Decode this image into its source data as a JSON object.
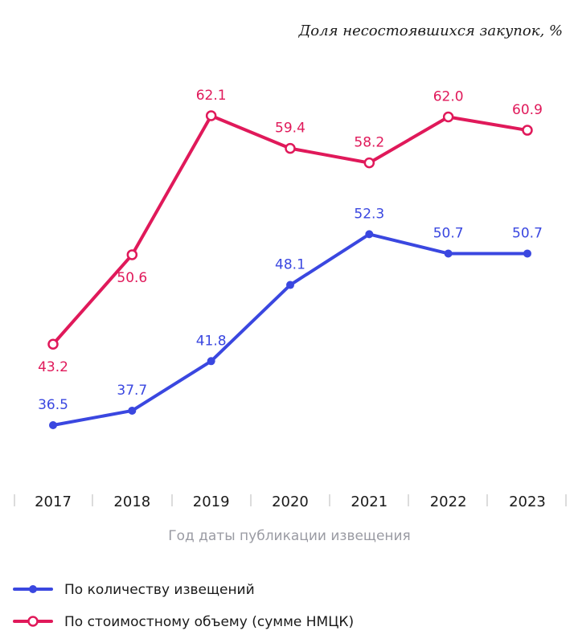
{
  "chart_data": {
    "type": "line",
    "title": "Доля несостоявшихся закупок, %",
    "xlabel": "Год даты публикации извещения",
    "ylabel": "",
    "categories": [
      "2017",
      "2018",
      "2019",
      "2020",
      "2021",
      "2022",
      "2023"
    ],
    "series": [
      {
        "name": "По количеству извещений",
        "color": "#3a47e0",
        "marker": "filled-circle",
        "values": [
          36.5,
          37.7,
          41.8,
          48.1,
          52.3,
          50.7,
          50.7
        ],
        "labels": [
          "36.5",
          "37.7",
          "41.8",
          "48.1",
          "52.3",
          "50.7",
          "50.7"
        ],
        "label_position": [
          "above",
          "above",
          "above",
          "above",
          "above",
          "above",
          "above"
        ]
      },
      {
        "name": "По стоимостному объему (сумме НМЦК)",
        "color": "#e0195a",
        "marker": "hollow-circle",
        "values": [
          43.2,
          50.6,
          62.1,
          59.4,
          58.2,
          62.0,
          60.9
        ],
        "labels": [
          "43.2",
          "50.6",
          "62.1",
          "59.4",
          "58.2",
          "62.0",
          "60.9"
        ],
        "label_position": [
          "below",
          "below",
          "above",
          "above",
          "above",
          "above",
          "above"
        ]
      }
    ],
    "grid": false,
    "legend_position": "bottom-left"
  }
}
